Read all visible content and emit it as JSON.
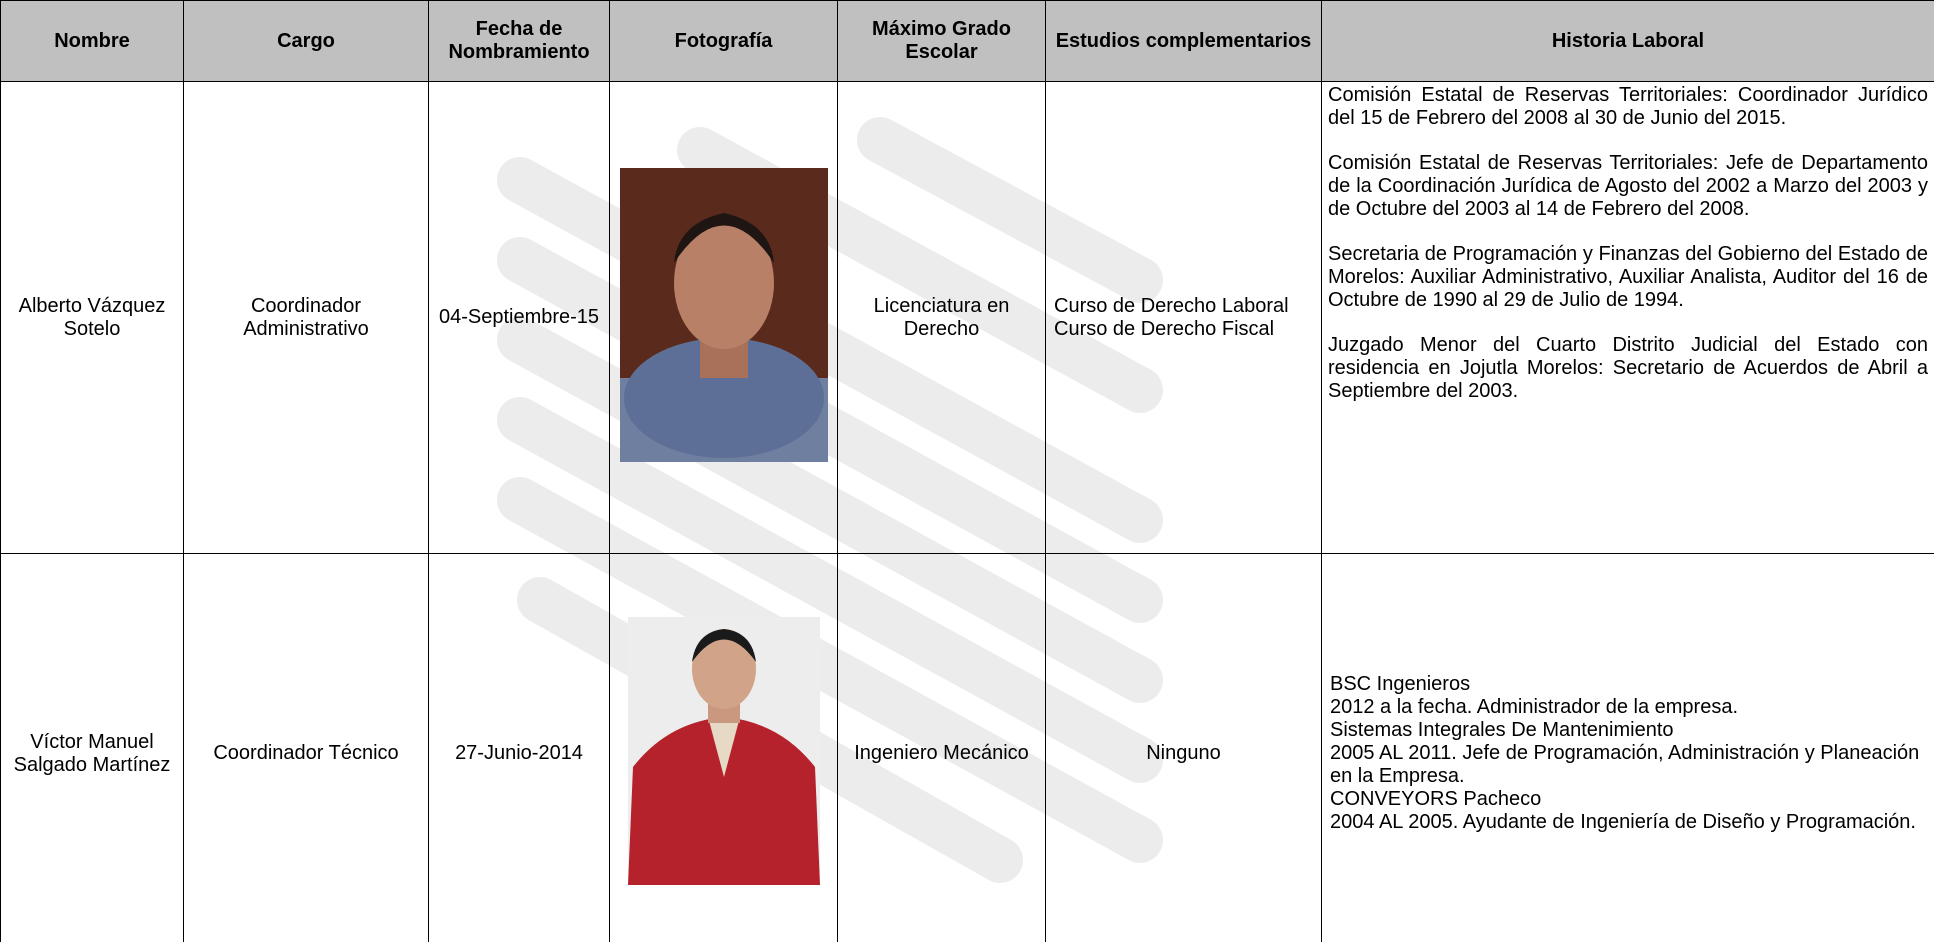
{
  "table": {
    "headers": [
      "Nombre",
      "Cargo",
      "Fecha de Nombramiento",
      "Fotografía",
      "Máximo Grado Escolar",
      "Estudios complementarios",
      "Historia Laboral"
    ],
    "rows": [
      {
        "nombre": "Alberto Vázquez Sotelo",
        "cargo": "Coordinador Administrativo",
        "fecha": "04-Septiembre-15",
        "grado": "Licenciatura en Derecho",
        "estudios": [
          "Curso de Derecho Laboral",
          "Curso de Derecho Fiscal"
        ],
        "historia": [
          "Comisión Estatal de Reservas Territoriales: Coordinador Jurídico del 15 de Febrero del 2008 al 30 de Junio del 2015.",
          "Comisión Estatal de Reservas Territoriales: Jefe de Departamento de la Coordinación Jurídica de Agosto del 2002 a Marzo del 2003 y de Octubre del 2003 al 14 de Febrero del 2008.",
          "Secretaria de Programación y Finanzas del Gobierno del Estado de Morelos: Auxiliar Administrativo, Auxiliar Analista, Auditor del 16 de Octubre de 1990 al 29 de Julio de 1994.",
          "Juzgado Menor del Cuarto Distrito Judicial del Estado con residencia en Jojutla Morelos: Secretario de Acuerdos de Abril a Septiembre del 2003."
        ]
      },
      {
        "nombre": "Víctor Manuel Salgado Martínez",
        "cargo": "Coordinador Técnico",
        "fecha": "27-Junio-2014",
        "grado": "Ingeniero Mecánico",
        "estudios": [
          "Ninguno"
        ],
        "historia": [
          "BSC Ingenieros",
          "2012  a la fecha. Administrador de la empresa.",
          "Sistemas Integrales De Mantenimiento",
          "2005 AL 2011. Jefe de Programación, Administración y Planeación en la Empresa.",
          "CONVEYORS Pacheco",
          "2004 AL 2005. Ayudante de Ingeniería de Diseño y Programación."
        ]
      }
    ]
  }
}
